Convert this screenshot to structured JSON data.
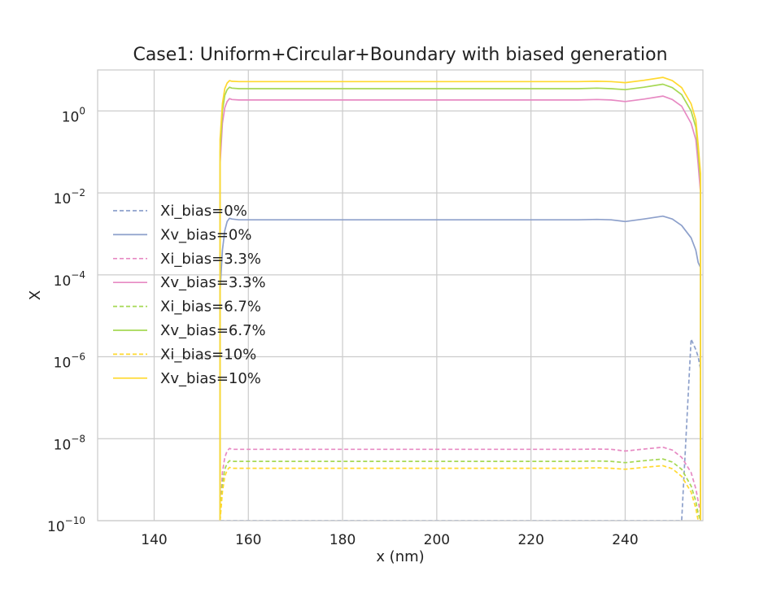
{
  "chart_data": {
    "type": "line",
    "title": "Case1: Uniform+Circular+Boundary with biased generation",
    "xlabel": "x (nm)",
    "ylabel": "X",
    "xlim": [
      128,
      256.5
    ],
    "ylim": [
      1e-10,
      10
    ],
    "yscale": "log",
    "grid": true,
    "legend_position": "center-left",
    "x_ticks": [
      140,
      160,
      180,
      200,
      220,
      240
    ],
    "x_tick_labels": [
      "140",
      "160",
      "180",
      "200",
      "220",
      "240"
    ],
    "y_ticks": [
      1e-10,
      1e-08,
      1e-06,
      0.0001,
      0.01,
      1
    ],
    "y_tick_labels": [
      {
        "base": "10",
        "exp": "−10"
      },
      {
        "base": "10",
        "exp": "−8"
      },
      {
        "base": "10",
        "exp": "−6"
      },
      {
        "base": "10",
        "exp": "−4"
      },
      {
        "base": "10",
        "exp": "−2"
      },
      {
        "base": "10",
        "exp": "0"
      }
    ],
    "x": [
      154,
      154.5,
      155,
      155.5,
      156,
      156.5,
      158,
      160,
      180,
      200,
      220,
      230,
      234,
      237,
      240,
      244,
      248,
      250,
      252,
      254,
      255,
      255.5,
      256
    ],
    "series": [
      {
        "name": "Xi_bias=0%",
        "color": "#8da0cb",
        "style": "dashed",
        "values": [
          1e-10,
          1e-10,
          1e-10,
          1e-10,
          1e-10,
          1e-10,
          1e-10,
          1e-10,
          1e-10,
          1e-10,
          1e-10,
          1e-10,
          1e-10,
          1e-10,
          1e-10,
          1e-10,
          1e-10,
          1e-10,
          1e-10,
          2.7e-06,
          1.5e-06,
          1e-06,
          5e-07
        ]
      },
      {
        "name": "Xv_bias=0%",
        "color": "#8da0cb",
        "style": "solid",
        "values": [
          4e-05,
          0.0004,
          0.0012,
          0.002,
          0.0024,
          0.0023,
          0.0022,
          0.0022,
          0.0022,
          0.0022,
          0.0022,
          0.0022,
          0.00225,
          0.0022,
          0.002,
          0.0023,
          0.0027,
          0.0023,
          0.0016,
          0.0008,
          0.0004,
          0.0002,
          0.00015
        ]
      },
      {
        "name": "Xi_bias=3.3%",
        "color": "#e78ac3",
        "style": "dashed",
        "values": [
          1e-10,
          1.5e-09,
          3.5e-09,
          5e-09,
          5.8e-09,
          5.5e-09,
          5.5e-09,
          5.5e-09,
          5.5e-09,
          5.5e-09,
          5.5e-09,
          5.5e-09,
          5.6e-09,
          5.5e-09,
          5e-09,
          5.6e-09,
          6.2e-09,
          5.3e-09,
          3.5e-09,
          1.5e-09,
          6e-10,
          3e-10,
          1.5e-10
        ]
      },
      {
        "name": "Xv_bias=3.3%",
        "color": "#e78ac3",
        "style": "solid",
        "values": [
          0.05,
          0.5,
          1.2,
          1.7,
          2.0,
          1.9,
          1.85,
          1.85,
          1.85,
          1.85,
          1.85,
          1.85,
          1.9,
          1.85,
          1.7,
          1.95,
          2.3,
          1.9,
          1.3,
          0.5,
          0.2,
          0.05,
          0.01
        ]
      },
      {
        "name": "Xi_bias=6.7%",
        "color": "#a6d854",
        "style": "dashed",
        "values": [
          1e-10,
          8e-10,
          1.8e-09,
          2.5e-09,
          2.9e-09,
          2.8e-09,
          2.8e-09,
          2.8e-09,
          2.8e-09,
          2.8e-09,
          2.8e-09,
          2.8e-09,
          2.85e-09,
          2.8e-09,
          2.6e-09,
          2.9e-09,
          3.2e-09,
          2.7e-09,
          1.8e-09,
          7e-10,
          3e-10,
          1.5e-10,
          1e-10
        ]
      },
      {
        "name": "Xv_bias=6.7%",
        "color": "#a6d854",
        "style": "solid",
        "values": [
          0.1,
          1.0,
          2.4,
          3.3,
          3.8,
          3.6,
          3.5,
          3.5,
          3.5,
          3.5,
          3.5,
          3.5,
          3.6,
          3.5,
          3.3,
          3.8,
          4.5,
          3.7,
          2.5,
          1.0,
          0.4,
          0.1,
          0.02
        ]
      },
      {
        "name": "Xi_bias=10%",
        "color": "#ffd92f",
        "style": "dashed",
        "values": [
          1e-10,
          5e-10,
          1.2e-09,
          1.7e-09,
          2e-09,
          1.9e-09,
          1.9e-09,
          1.9e-09,
          1.9e-09,
          1.9e-09,
          1.9e-09,
          1.9e-09,
          1.95e-09,
          1.9e-09,
          1.8e-09,
          2e-09,
          2.2e-09,
          1.85e-09,
          1.2e-09,
          5e-10,
          2e-10,
          1e-10,
          1e-10
        ]
      },
      {
        "name": "Xv_bias=10%",
        "color": "#ffd92f",
        "style": "solid",
        "values": [
          0.2,
          1.5,
          3.5,
          4.8,
          5.5,
          5.3,
          5.2,
          5.2,
          5.2,
          5.2,
          5.2,
          5.2,
          5.3,
          5.2,
          4.9,
          5.6,
          6.6,
          5.5,
          3.7,
          1.5,
          0.6,
          0.15,
          0.03
        ]
      }
    ]
  }
}
